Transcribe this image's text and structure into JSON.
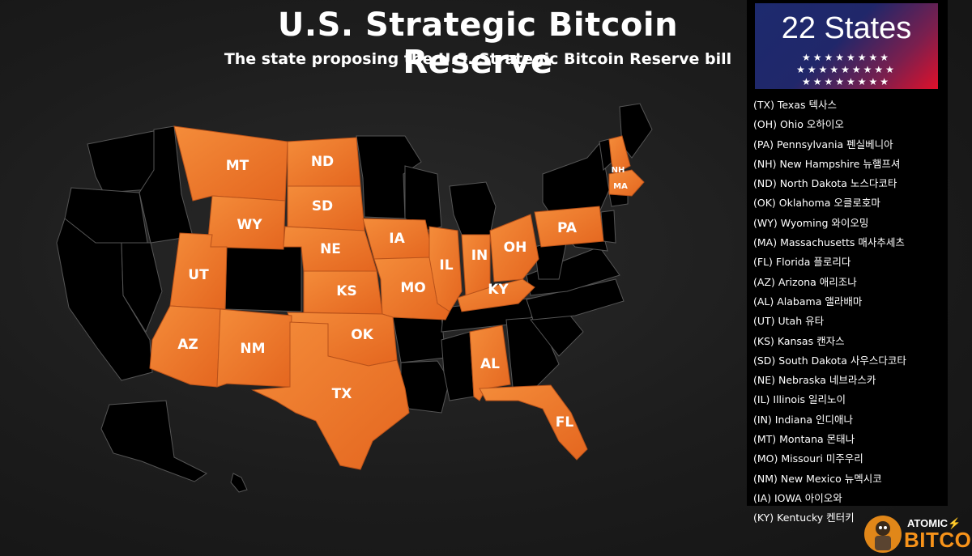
{
  "title": "U.S. Strategic Bitcoin Reserve",
  "subtitle": "The state proposing the U.S. Strategic Bitcoin Reserve bill",
  "colors": {
    "highlight": "#ee7a2a",
    "highlight_light": "#f48c3a",
    "other_state": "#000000",
    "border": "#555555",
    "background": "#1c1c1c",
    "banner_blue": "#1d2a6e",
    "banner_red": "#e0102a",
    "logo_orange": "#f7931a"
  },
  "banner": {
    "title": "22 States",
    "star_rows": [
      "★★★★★★★★",
      "★★★★★★★★★",
      "★★★★★★★★"
    ]
  },
  "states": [
    "(TX) Texas 텍사스",
    "(OH) Ohio 오하이오",
    "(PA) Pennsylvania 펜실베니아",
    "(NH) New Hampshire 뉴햄프셔",
    "(ND) North Dakota 노스다코타",
    "(OK) Oklahoma 오클로호마",
    "(WY) Wyoming 와이오밍",
    "(MA) Massachusetts 매사추세츠",
    "(FL) Florida 플로리다",
    "(AZ) Arizona 애리조나",
    "(AL) Alabama 앨라배마",
    "(UT) Utah 유타",
    "(KS) Kansas 캔자스",
    "(SD) South Dakota 사우스다코타",
    "(NE) Nebraska 네브라스카",
    "(IL) Illinois 일리노이",
    "(IN) Indiana 인디애나",
    "(MT) Montana 몬태나",
    "(MO) Missouri 미주우리",
    "(NM) New Mexico 뉴멕시코",
    "(IA) IOWA 아이오와",
    "(KY) Kentucky 켄터키"
  ],
  "map_labels": [
    "MT",
    "ND",
    "SD",
    "WY",
    "NE",
    "UT",
    "KS",
    "IA",
    "IL",
    "IN",
    "OH",
    "PA",
    "MO",
    "KY",
    "OK",
    "AZ",
    "NM",
    "TX",
    "AL",
    "FL",
    "NH",
    "MA"
  ],
  "logo": {
    "name": "ATOMIC",
    "bolt": "⚡",
    "word": "BITCOIN"
  }
}
